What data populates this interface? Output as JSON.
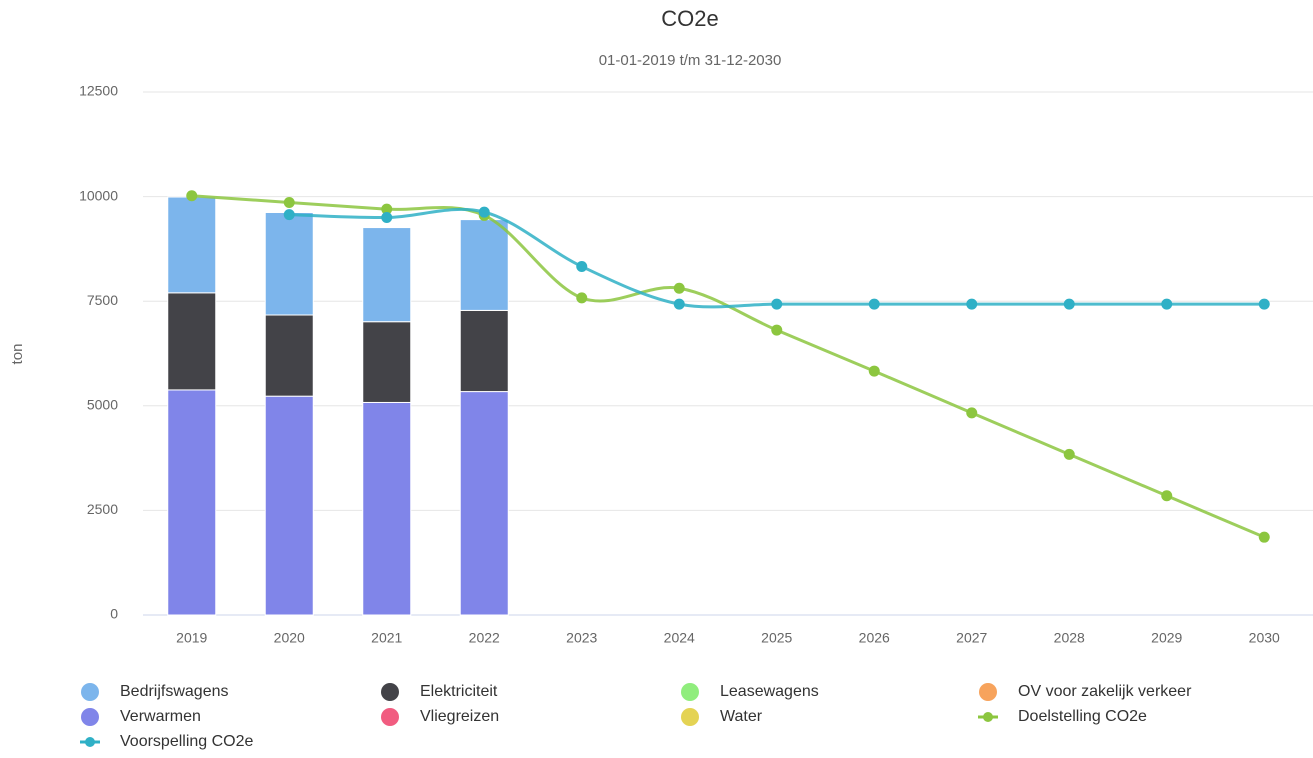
{
  "chart_data": {
    "type": "bar",
    "title": "CO2e",
    "subtitle": "01-01-2019 t/m 31-12-2030",
    "y_label": "ton",
    "categories": [
      "2019",
      "2020",
      "2021",
      "2022",
      "2023",
      "2024",
      "2025",
      "2026",
      "2027",
      "2028",
      "2029",
      "2030"
    ],
    "ylim": [
      0,
      12500
    ],
    "yticks": [
      0,
      2500,
      5000,
      7500,
      10000,
      12500
    ],
    "grid": true,
    "stacked": true,
    "legend": "bottom",
    "series": [
      {
        "name": "Bedrijfswagens",
        "type": "column",
        "color": "#7cb5ec",
        "values": [
          2290,
          2450,
          2250,
          2170,
          null,
          null,
          null,
          null,
          null,
          null,
          null,
          null
        ]
      },
      {
        "name": "Elektriciteit",
        "type": "column",
        "color": "#434348",
        "values": [
          2320,
          1940,
          1930,
          1940,
          null,
          null,
          null,
          null,
          null,
          null,
          null,
          null
        ]
      },
      {
        "name": "Leasewagens",
        "type": "column",
        "color": "#90ed7d",
        "values": [
          0,
          0,
          0,
          0,
          null,
          null,
          null,
          null,
          null,
          null,
          null,
          null
        ]
      },
      {
        "name": "OV voor zakelijk verkeer",
        "type": "column",
        "color": "#f7a35c",
        "values": [
          0,
          0,
          0,
          0,
          null,
          null,
          null,
          null,
          null,
          null,
          null,
          null
        ]
      },
      {
        "name": "Verwarmen",
        "type": "column",
        "color": "#8085e9",
        "values": [
          5380,
          5230,
          5080,
          5340,
          null,
          null,
          null,
          null,
          null,
          null,
          null,
          null
        ]
      },
      {
        "name": "Vliegreizen",
        "type": "column",
        "color": "#f15c80",
        "values": [
          0,
          0,
          0,
          0,
          null,
          null,
          null,
          null,
          null,
          null,
          null,
          null
        ]
      },
      {
        "name": "Water",
        "type": "column",
        "color": "#e4d354",
        "values": [
          0,
          0,
          0,
          0,
          null,
          null,
          null,
          null,
          null,
          null,
          null,
          null
        ]
      },
      {
        "name": "Doelstelling CO2e",
        "type": "line",
        "color": "#8cc63f",
        "values": [
          10020,
          9860,
          9700,
          9550,
          7580,
          7810,
          6810,
          5830,
          4830,
          3840,
          2850,
          1860
        ]
      },
      {
        "name": "Voorspelling CO2e",
        "type": "line",
        "color": "#2fb0c6",
        "values": [
          null,
          9570,
          9500,
          9630,
          8330,
          7430,
          7430,
          7430,
          7430,
          7430,
          7430,
          7430
        ]
      }
    ]
  }
}
